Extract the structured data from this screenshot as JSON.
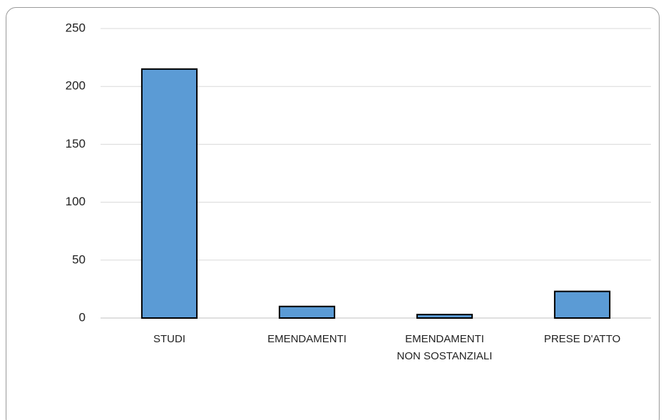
{
  "chart_data": {
    "type": "bar",
    "categories": [
      "STUDI",
      "EMENDAMENTI",
      "EMENDAMENTI NON SOSTANZIALI",
      "PRESE D'ATTO"
    ],
    "values": [
      215,
      10,
      3,
      23
    ],
    "color": "#5b9bd5",
    "ylim": [
      0,
      250
    ],
    "yticks": [
      0,
      50,
      100,
      150,
      200,
      250
    ],
    "grid": true
  }
}
